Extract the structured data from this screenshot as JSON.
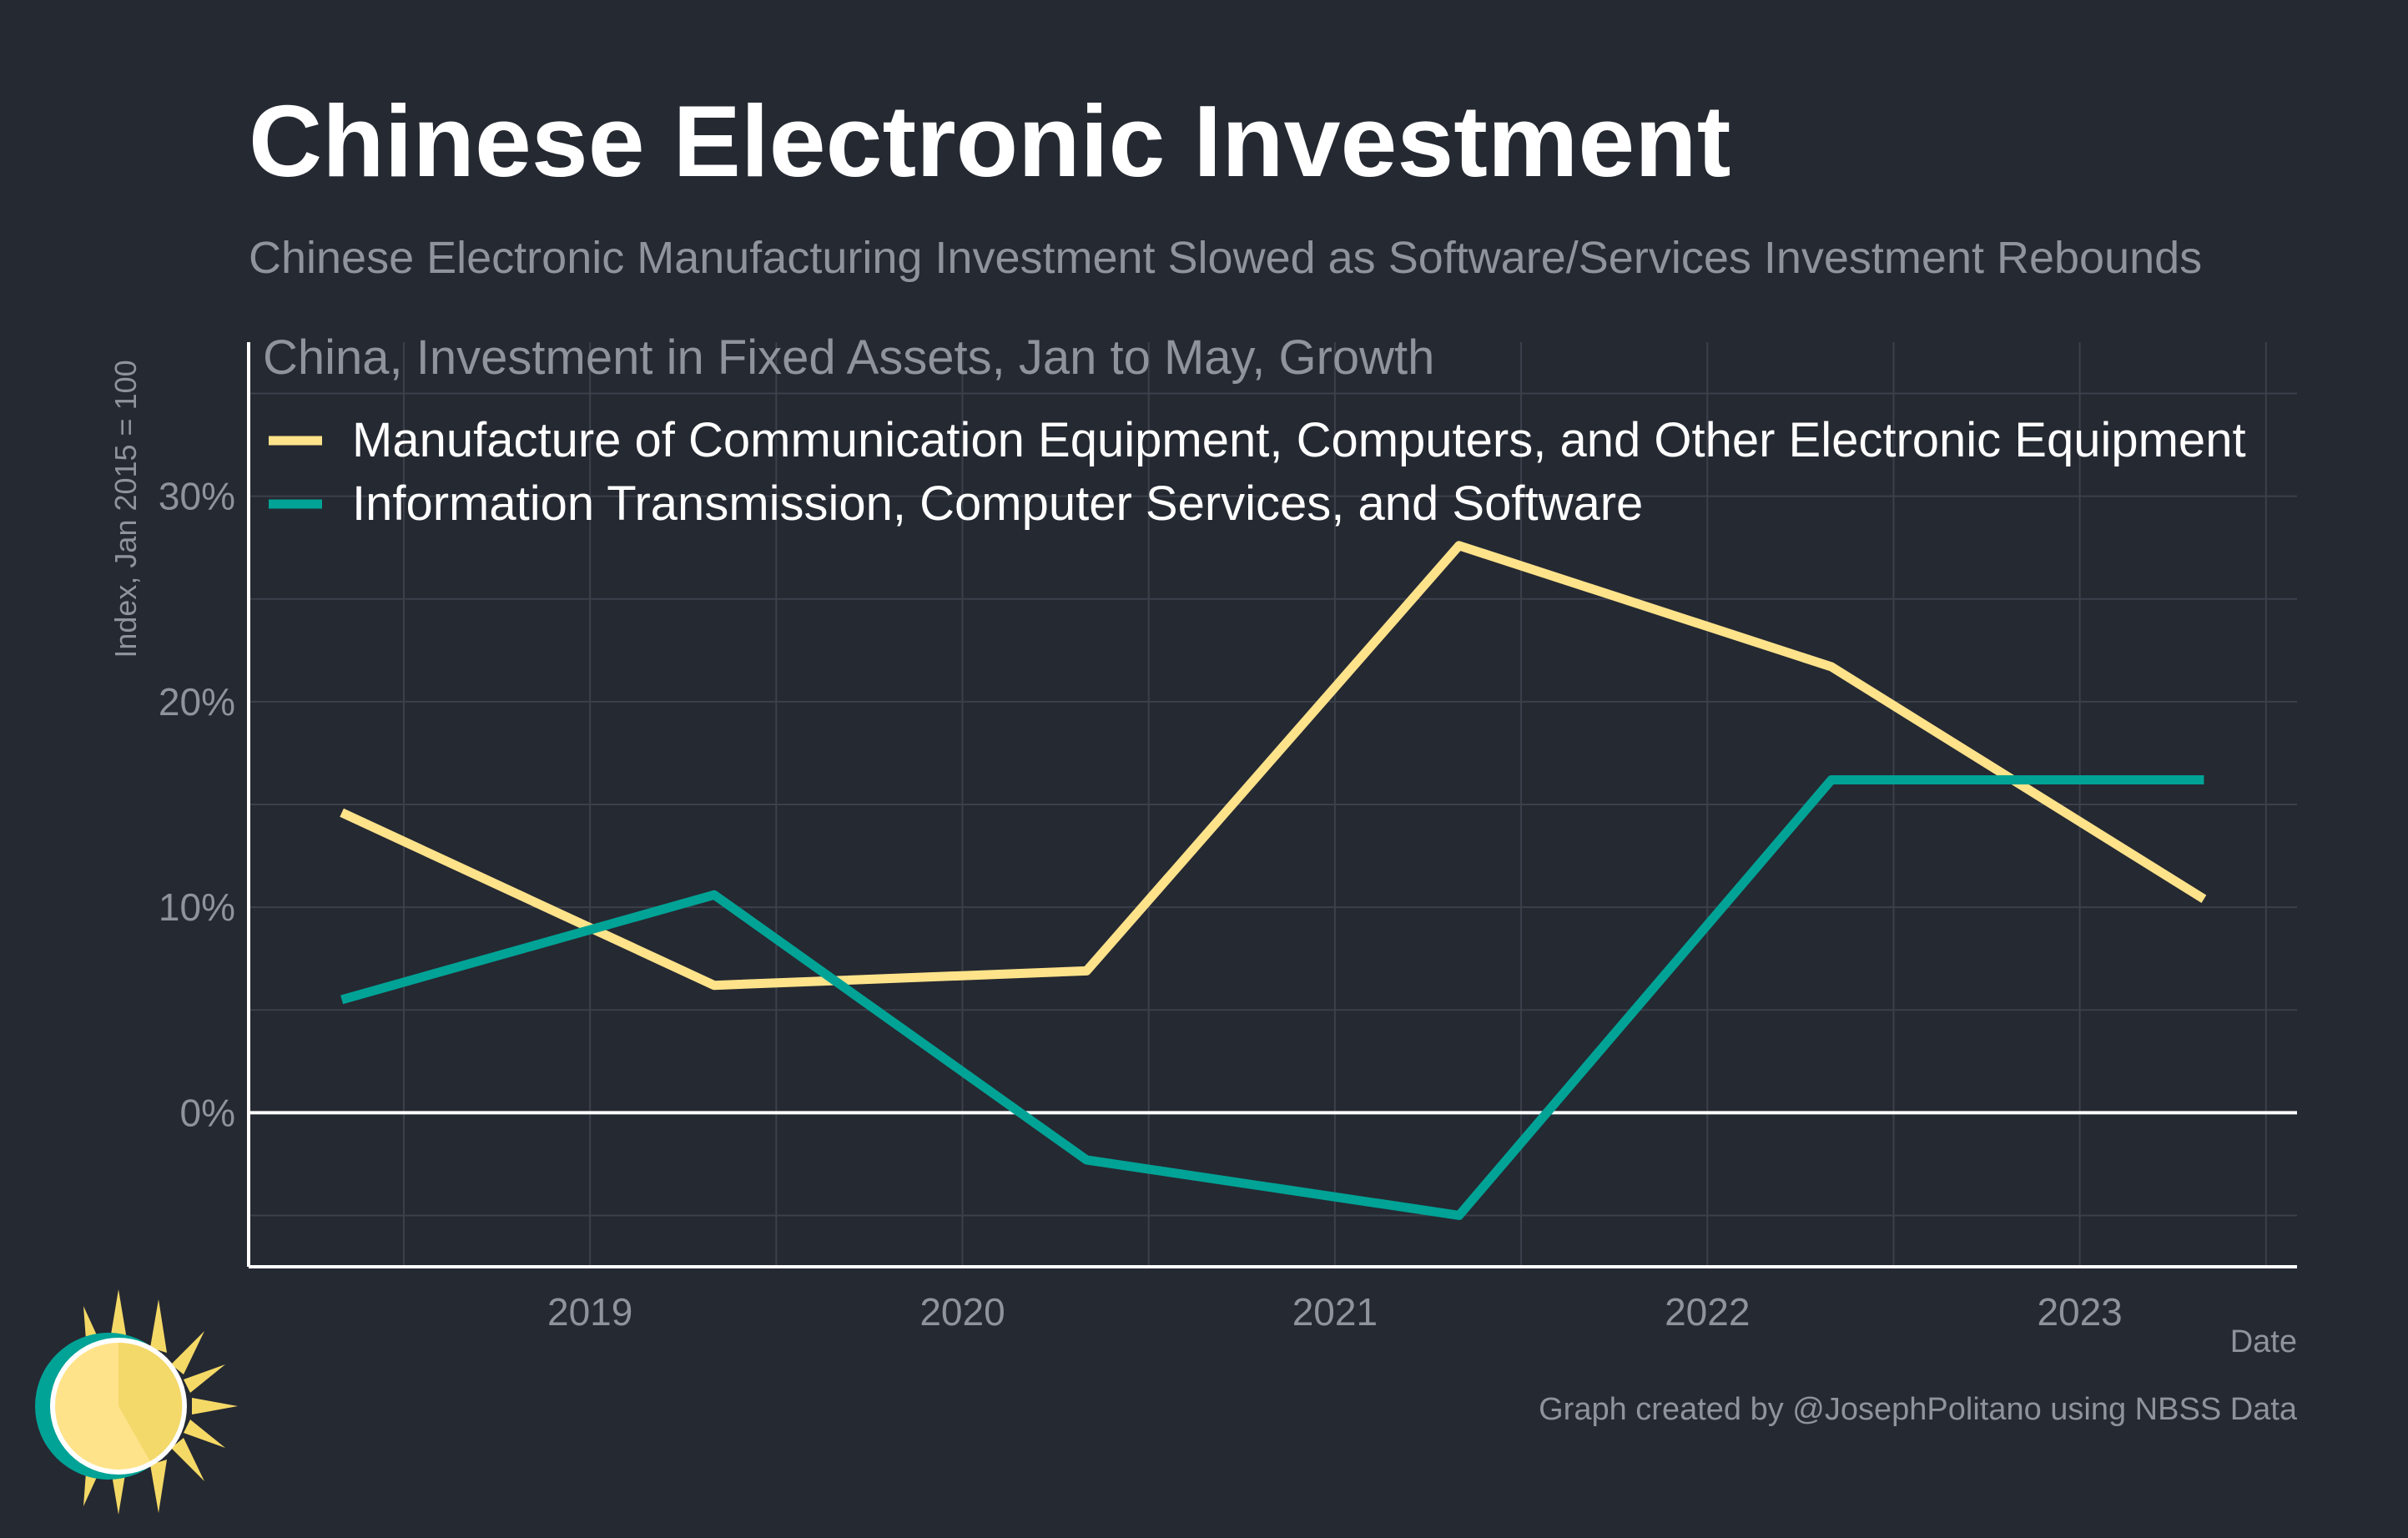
{
  "title": "Chinese Electronic Investment",
  "subtitle": "Chinese Electronic Manufacturing Investment Slowed as Software/Services Investment Rebounds",
  "colors": {
    "background": "#252932",
    "grid": "#3b404a",
    "axis": "#ffffff",
    "muted_text": "#8e939c",
    "series_manufacturing": "#ffe38a",
    "series_info": "#00a396"
  },
  "chart_data": {
    "type": "line",
    "title": "China, Investment in Fixed Assets, Jan to May, Growth",
    "xlabel": "Date",
    "ylabel": "Index, Jan 2015 = 100",
    "x": [
      "2018-05",
      "2019-05",
      "2020-05",
      "2021-05",
      "2022-05",
      "2023-05"
    ],
    "x_ticks": [
      "2019",
      "2020",
      "2021",
      "2022",
      "2023"
    ],
    "y_ticks": [
      0,
      10,
      20,
      30
    ],
    "y_tick_labels": [
      "0%",
      "10%",
      "20%",
      "30%"
    ],
    "ylim": [
      -7.5,
      37.5
    ],
    "xlim": [
      "2018-02",
      "2023-08"
    ],
    "grid": true,
    "legend_position": "top-left",
    "series": [
      {
        "name": "Manufacture of Communication Equipment, Computers, and Other Electronic Equipment",
        "color": "#ffe38a",
        "values": [
          14.6,
          6.2,
          6.9,
          27.6,
          21.7,
          10.4
        ]
      },
      {
        "name": "Information Transmission, Computer Services, and Software",
        "color": "#00a396",
        "values": [
          5.5,
          10.6,
          -2.3,
          -5.0,
          16.2,
          16.2
        ]
      }
    ]
  },
  "footer": {
    "credit": "Graph created by @JosephPolitano using NBSS Data"
  },
  "logo_icon": "sun-icon"
}
